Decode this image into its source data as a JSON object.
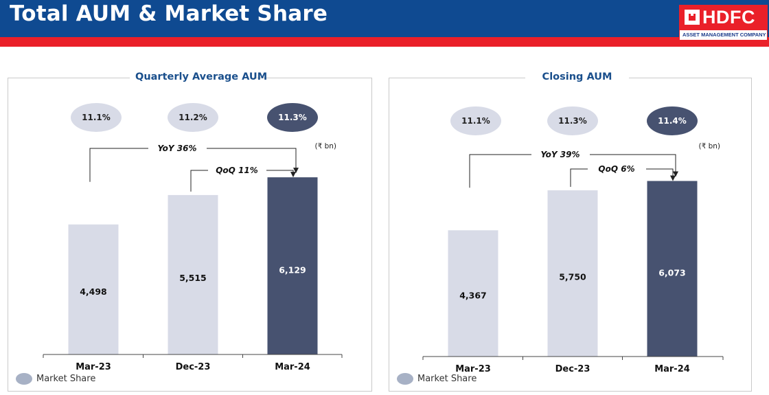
{
  "header": {
    "title": "Total AUM & Market Share"
  },
  "logo": {
    "name": "HDFC",
    "subtitle": "ASSET MANAGEMENT COMPANY LIMITED"
  },
  "colors": {
    "header_blue": "#0f4a91",
    "accent_red": "#ea2029",
    "bar_light": "#d8dbe7",
    "bar_dark": "#475270",
    "share_light": "#d8dbe7",
    "share_dark": "#475270"
  },
  "chart_data": [
    {
      "type": "bar",
      "title": "Quarterly Average AUM",
      "unit": "(₹ bn)",
      "categories": [
        "Mar-23",
        "Dec-23",
        "Mar-24"
      ],
      "values": [
        4498,
        5515,
        6129
      ],
      "value_labels": [
        "4,498",
        "5,515",
        "6,129"
      ],
      "market_share": [
        "11.1%",
        "11.2%",
        "11.3%"
      ],
      "growth": {
        "yoy": "YoY 36%",
        "qoq": "QoQ 11%"
      },
      "legend": "Market Share"
    },
    {
      "type": "bar",
      "title": "Closing AUM",
      "unit": "(₹ bn)",
      "categories": [
        "Mar-23",
        "Dec-23",
        "Mar-24"
      ],
      "values": [
        4367,
        5750,
        6073
      ],
      "value_labels": [
        "4,367",
        "5,750",
        "6,073"
      ],
      "market_share": [
        "11.1%",
        "11.3%",
        "11.4%"
      ],
      "growth": {
        "yoy": "YoY 39%",
        "qoq": "QoQ 6%"
      },
      "legend": "Market Share"
    }
  ]
}
